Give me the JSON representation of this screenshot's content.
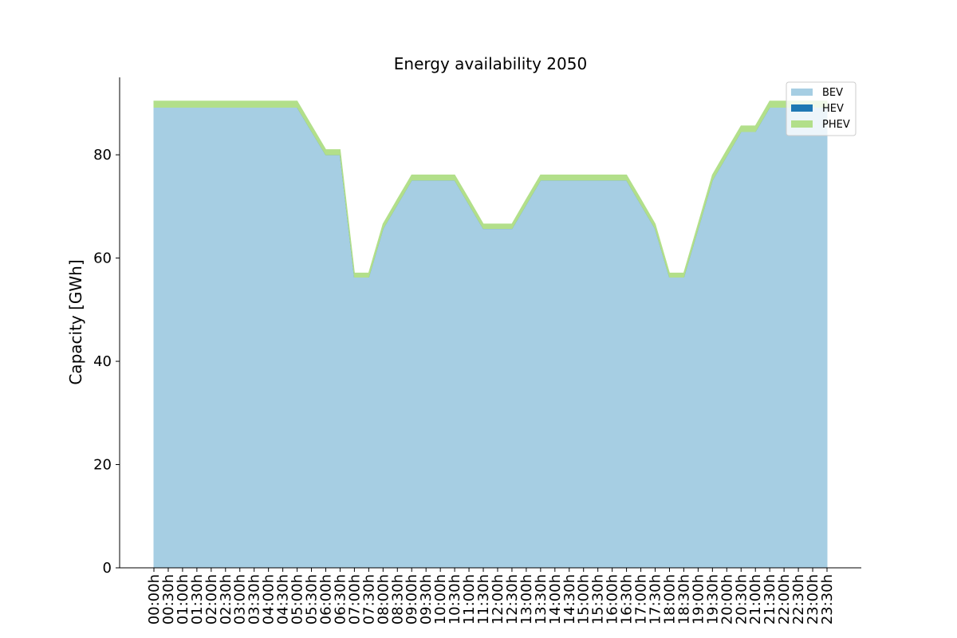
{
  "chart_data": {
    "type": "area",
    "stacked": true,
    "title": "Energy availability 2050",
    "xlabel": "",
    "ylabel": "Capacity [GWh]",
    "ylim": [
      0,
      95
    ],
    "yticks": [
      0,
      20,
      40,
      60,
      80
    ],
    "grid": false,
    "legend_position": "top-right",
    "categories": [
      "00:00h",
      "00:30h",
      "01:00h",
      "01:30h",
      "02:00h",
      "02:30h",
      "03:00h",
      "03:30h",
      "04:00h",
      "04:30h",
      "05:00h",
      "05:30h",
      "06:00h",
      "06:30h",
      "07:00h",
      "07:30h",
      "08:00h",
      "08:30h",
      "09:00h",
      "09:30h",
      "10:00h",
      "10:30h",
      "11:00h",
      "11:30h",
      "12:00h",
      "12:30h",
      "13:00h",
      "13:30h",
      "14:00h",
      "14:30h",
      "15:00h",
      "15:30h",
      "16:00h",
      "16:30h",
      "17:00h",
      "17:30h",
      "18:00h",
      "18:30h",
      "19:00h",
      "19:30h",
      "20:00h",
      "20:30h",
      "21:00h",
      "21:30h",
      "22:00h",
      "22:30h",
      "23:00h",
      "23:30h"
    ],
    "series": [
      {
        "name": "BEV",
        "color": "#a6cee3",
        "values": [
          89.2,
          89.2,
          89.2,
          89.2,
          89.2,
          89.2,
          89.2,
          89.2,
          89.2,
          89.2,
          89.2,
          84.6,
          80.0,
          80.0,
          56.3,
          56.3,
          65.7,
          70.4,
          75.1,
          75.1,
          75.1,
          75.1,
          70.4,
          65.7,
          65.7,
          65.7,
          70.4,
          75.1,
          75.1,
          75.1,
          75.1,
          75.1,
          75.1,
          75.1,
          70.4,
          65.7,
          56.3,
          56.3,
          65.7,
          75.1,
          79.8,
          84.5,
          84.5,
          89.2,
          89.2,
          89.2,
          89.2,
          89.2
        ]
      },
      {
        "name": "HEV",
        "color": "#1f78b4",
        "values": [
          0,
          0,
          0,
          0,
          0,
          0,
          0,
          0,
          0,
          0,
          0,
          0,
          0,
          0,
          0,
          0,
          0,
          0,
          0,
          0,
          0,
          0,
          0,
          0,
          0,
          0,
          0,
          0,
          0,
          0,
          0,
          0,
          0,
          0,
          0,
          0,
          0,
          0,
          0,
          0,
          0,
          0,
          0,
          0,
          0,
          0,
          0,
          0
        ]
      },
      {
        "name": "PHEV",
        "color": "#b2df8a",
        "values": [
          1.2,
          1.2,
          1.2,
          1.2,
          1.2,
          1.2,
          1.2,
          1.2,
          1.2,
          1.2,
          1.2,
          1.1,
          1.0,
          1.0,
          0.8,
          0.8,
          0.9,
          1.0,
          1.0,
          1.0,
          1.0,
          1.0,
          1.0,
          0.9,
          0.9,
          0.9,
          1.0,
          1.0,
          1.0,
          1.0,
          1.0,
          1.0,
          1.0,
          1.0,
          1.0,
          0.9,
          0.8,
          0.8,
          0.9,
          1.0,
          1.1,
          1.1,
          1.1,
          1.2,
          1.2,
          1.2,
          1.2,
          1.2
        ]
      }
    ]
  }
}
